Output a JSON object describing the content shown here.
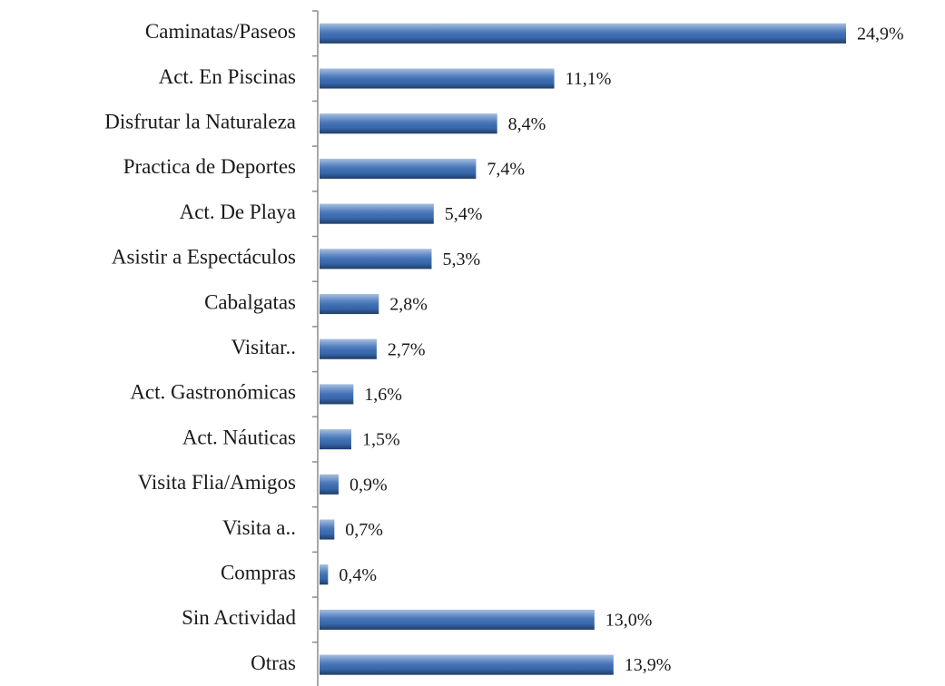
{
  "chart_data": {
    "type": "barh",
    "categories": [
      "Caminatas/Paseos",
      "Act. En Piscinas",
      "Disfrutar la Naturaleza",
      "Practica de Deportes",
      "Act. De Playa",
      "Asistir a Espectáculos",
      "Cabalgatas",
      "Visitar..",
      "Act. Gastronómicas",
      "Act. Náuticas",
      "Visita Flia/Amigos",
      "Visita a..",
      "Compras",
      "Sin Actividad",
      "Otras"
    ],
    "values": [
      24.9,
      11.1,
      8.4,
      7.4,
      5.4,
      5.3,
      2.8,
      2.7,
      1.6,
      1.5,
      0.9,
      0.7,
      0.4,
      13.0,
      13.9
    ],
    "value_labels": [
      "24,9%",
      "11,1%",
      "8,4%",
      "7,4%",
      "5,4%",
      "5,3%",
      "2,8%",
      "2,7%",
      "1,6%",
      "1,5%",
      "0,9%",
      "0,7%",
      "0,4%",
      "13,0%",
      "13,9%"
    ],
    "color": "#3c6fb8"
  }
}
